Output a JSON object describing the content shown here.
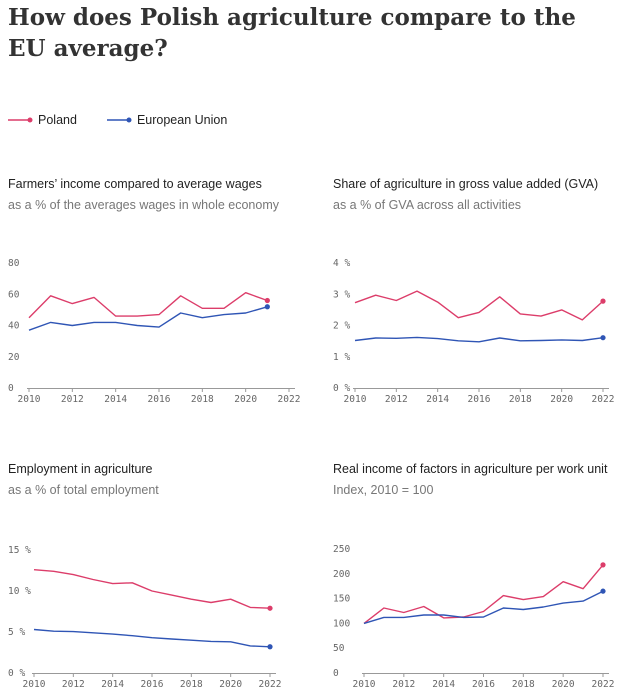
{
  "header": {
    "title": "How does Polish agriculture compare to the EU average?"
  },
  "legend": [
    {
      "label": "Poland",
      "color": "#dc3d6a"
    },
    {
      "label": "European Union",
      "color": "#2f55b5"
    }
  ],
  "chart_data": [
    {
      "type": "line",
      "title": "Farmers’ income compared to average wages",
      "subtitle": "as a % of the averages wages in whole economy",
      "x": [
        2010,
        2011,
        2012,
        2013,
        2014,
        2015,
        2016,
        2017,
        2018,
        2019,
        2020,
        2021
      ],
      "series": [
        {
          "name": "Poland",
          "color": "#dc3d6a",
          "values": [
            45,
            59,
            54,
            58,
            46,
            46,
            47,
            59,
            51,
            51,
            61,
            56
          ]
        },
        {
          "name": "European Union",
          "color": "#2f55b5",
          "values": [
            37,
            42,
            40,
            42,
            42,
            40,
            39,
            48,
            45,
            47,
            48,
            52
          ]
        }
      ],
      "xlim": [
        2010,
        2022
      ],
      "xticks": [
        2010,
        2012,
        2014,
        2016,
        2018,
        2020,
        2022
      ],
      "ylim": [
        0,
        80
      ],
      "yticks": [
        0,
        20,
        40,
        60,
        80
      ],
      "ytick_labels": [
        "0",
        "20",
        "40",
        "60",
        "80"
      ],
      "grid": false
    },
    {
      "type": "line",
      "title": "Share of agriculture in gross value added (GVA)",
      "subtitle": "as a % of GVA  across all activities",
      "x": [
        2010,
        2011,
        2012,
        2013,
        2014,
        2015,
        2016,
        2017,
        2018,
        2019,
        2020,
        2021,
        2022
      ],
      "series": [
        {
          "name": "Poland",
          "color": "#dc3d6a",
          "values": [
            2.73,
            2.97,
            2.8,
            3.1,
            2.75,
            2.25,
            2.42,
            2.92,
            2.37,
            2.3,
            2.5,
            2.18,
            2.78
          ]
        },
        {
          "name": "European Union",
          "color": "#2f55b5",
          "values": [
            1.52,
            1.6,
            1.59,
            1.62,
            1.58,
            1.51,
            1.48,
            1.6,
            1.51,
            1.52,
            1.54,
            1.52,
            1.61
          ]
        }
      ],
      "xlim": [
        2010,
        2022
      ],
      "xticks": [
        2010,
        2012,
        2014,
        2016,
        2018,
        2020,
        2022
      ],
      "ylim": [
        0,
        4
      ],
      "yticks": [
        0,
        1,
        2,
        3,
        4
      ],
      "ytick_labels": [
        "0 %",
        "1 %",
        "2 %",
        "3 %",
        "4 %"
      ],
      "grid": false
    },
    {
      "type": "line",
      "title": "Employment in agriculture",
      "subtitle": "as a % of total employment",
      "x": [
        2010,
        2011,
        2012,
        2013,
        2014,
        2015,
        2016,
        2017,
        2018,
        2019,
        2020,
        2021,
        2022
      ],
      "series": [
        {
          "name": "Poland",
          "color": "#dc3d6a",
          "values": [
            12.6,
            12.4,
            12.0,
            11.4,
            10.9,
            11.0,
            10.0,
            9.5,
            9.0,
            8.6,
            9.0,
            8.0,
            7.9
          ]
        },
        {
          "name": "European Union",
          "color": "#2f55b5",
          "values": [
            5.3,
            5.1,
            5.05,
            4.9,
            4.75,
            4.55,
            4.3,
            4.15,
            4.0,
            3.85,
            3.8,
            3.3,
            3.2
          ]
        }
      ],
      "xlim": [
        2010,
        2022
      ],
      "xticks": [
        2010,
        2012,
        2014,
        2016,
        2018,
        2020,
        2022
      ],
      "ylim": [
        0,
        15
      ],
      "yticks": [
        0,
        5,
        10,
        15
      ],
      "ytick_labels": [
        "0 %",
        "5 %",
        "10 %",
        "15 %"
      ],
      "grid": false
    },
    {
      "type": "line",
      "title": "Real income of factors in agriculture per work unit",
      "subtitle": "Index, 2010 = 100",
      "x": [
        2010,
        2011,
        2012,
        2013,
        2014,
        2015,
        2016,
        2017,
        2018,
        2019,
        2020,
        2021,
        2022
      ],
      "series": [
        {
          "name": "Poland",
          "color": "#dc3d6a",
          "values": [
            100,
            131,
            122,
            134,
            111,
            113,
            124,
            156,
            148,
            154,
            184,
            170,
            218
          ]
        },
        {
          "name": "European Union",
          "color": "#2f55b5",
          "values": [
            100,
            112,
            112,
            117,
            117,
            112,
            113,
            131,
            128,
            133,
            141,
            145,
            165
          ]
        }
      ],
      "xlim": [
        2010,
        2022
      ],
      "xticks": [
        2010,
        2012,
        2014,
        2016,
        2018,
        2020,
        2022
      ],
      "ylim": [
        0,
        250
      ],
      "yticks": [
        0,
        50,
        100,
        150,
        200,
        250
      ],
      "ytick_labels": [
        "0",
        "50",
        "100",
        "150",
        "200",
        "250"
      ],
      "grid": false
    }
  ]
}
